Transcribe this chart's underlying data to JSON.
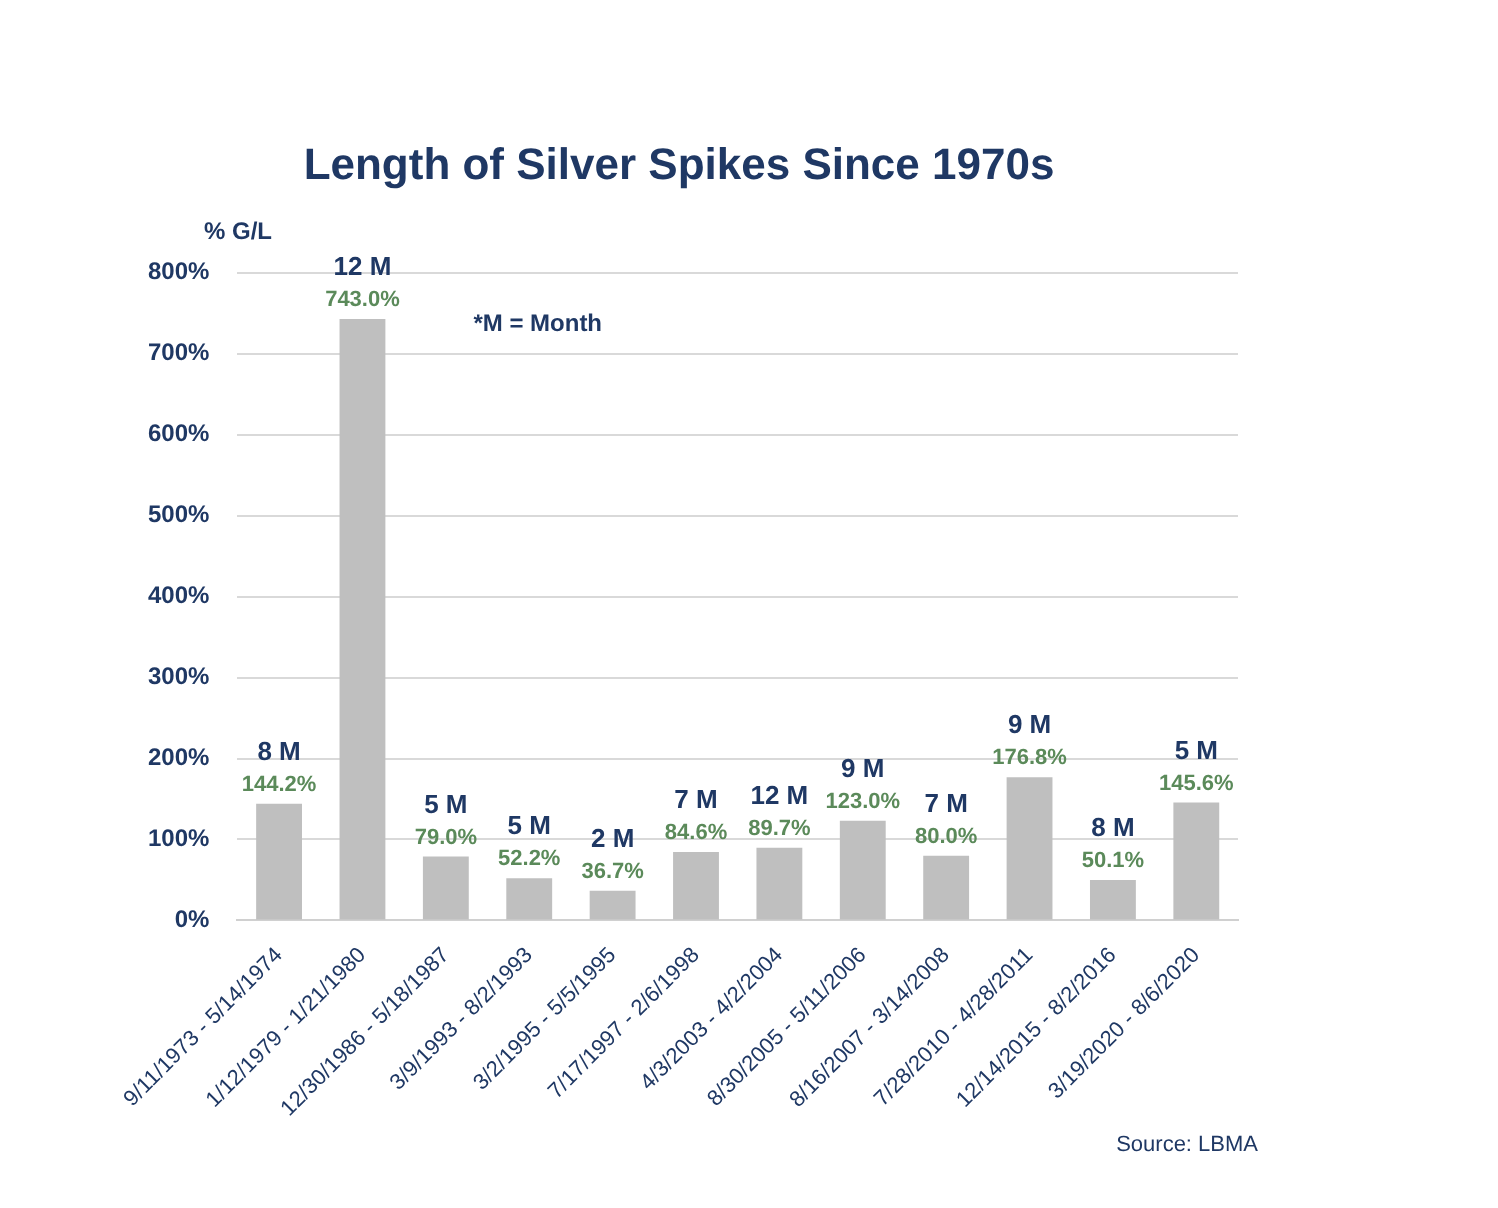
{
  "chart_data": {
    "type": "bar",
    "title": "Length of Silver Spikes Since 1970s",
    "ylabel": "% G/L",
    "categories": [
      "9/11/1973 - 5/14/1974",
      "1/12/1979 - 1/21/1980",
      "12/30/1986 - 5/18/1987",
      "3/9/1993 - 8/2/1993",
      "3/2/1995 - 5/5/1995",
      "7/17/1997 - 2/6/1998",
      "4/3/2003 - 4/2/2004",
      "8/30/2005 - 5/11/2006",
      "8/16/2007 - 3/14/2008",
      "7/28/2010 - 4/28/2011",
      "12/14/2015 - 8/2/2016",
      "3/19/2020 - 8/6/2020"
    ],
    "values": [
      144.2,
      743.0,
      79.0,
      52.2,
      36.7,
      84.6,
      89.7,
      123.0,
      80.0,
      176.8,
      50.1,
      145.6
    ],
    "value_labels": [
      "144.2%",
      "743.0%",
      "79.0%",
      "52.2%",
      "36.7%",
      "84.6%",
      "89.7%",
      "123.0%",
      "80.0%",
      "176.8%",
      "50.1%",
      "145.6%"
    ],
    "color": "#bfbfbf",
    "ylim": [
      0,
      800
    ],
    "yticks": [
      {
        "value": 0,
        "label": "0%"
      },
      {
        "value": 100,
        "label": "100%"
      },
      {
        "value": 200,
        "label": "200%"
      },
      {
        "value": 300,
        "label": "300%"
      },
      {
        "value": 400,
        "label": "400%"
      },
      {
        "value": 500,
        "label": "500%"
      },
      {
        "value": 600,
        "label": "600%"
      },
      {
        "value": 700,
        "label": "700%"
      },
      {
        "value": 800,
        "label": "800%"
      }
    ],
    "grid": "y",
    "legend": false,
    "annotations": [
      {
        "text": "8 M",
        "x": "9/11/1973 - 5/14/1974",
        "y": 144.2
      },
      {
        "text": "12 M",
        "x": "1/12/1979 - 1/21/1980",
        "y": 743.0
      },
      {
        "text": "5 M",
        "x": "12/30/1986 - 5/18/1987",
        "y": 79.0
      },
      {
        "text": "5 M",
        "x": "3/9/1993 - 8/2/1993",
        "y": 52.2
      },
      {
        "text": "2 M",
        "x": "3/2/1995 - 5/5/1995",
        "y": 36.7
      },
      {
        "text": "7 M",
        "x": "7/17/1997 - 2/6/1998",
        "y": 84.6
      },
      {
        "text": "12 M",
        "x": "4/3/2003 - 4/2/2004",
        "y": 89.7
      },
      {
        "text": "9 M",
        "x": "8/30/2005 - 5/11/2006",
        "y": 123.0
      },
      {
        "text": "7 M",
        "x": "8/16/2007 - 3/14/2008",
        "y": 80.0
      },
      {
        "text": "9 M",
        "x": "7/28/2010 - 4/28/2011",
        "y": 176.8
      },
      {
        "text": "8 M",
        "x": "12/14/2015 - 8/2/2016",
        "y": 50.1
      },
      {
        "text": "5 M",
        "x": "3/19/2020 - 8/6/2020",
        "y": 145.6
      },
      "*M = Month",
      "Source: LBMA"
    ]
  }
}
